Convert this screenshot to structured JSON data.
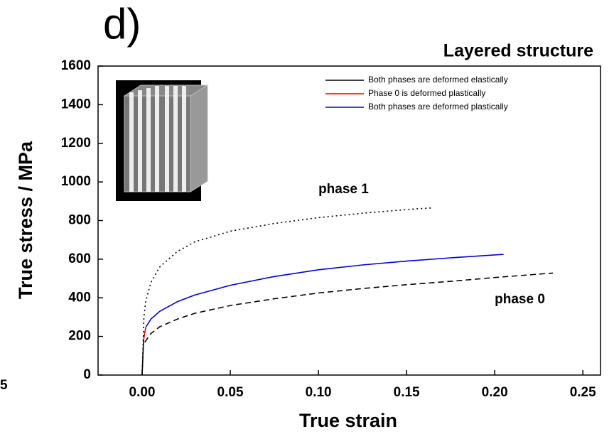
{
  "chart_data": {
    "type": "line",
    "panel_label": "d)",
    "title": "Layered structure",
    "x_label": "True strain",
    "y_label": "True stress / MPa",
    "left_fragment": "5",
    "xlim": [
      -0.025,
      0.26
    ],
    "ylim": [
      0,
      1600
    ],
    "xticks": [
      {
        "value": 0,
        "label": "0.00"
      },
      {
        "value": 0.05,
        "label": "0.05"
      },
      {
        "value": 0.1,
        "label": "0.10"
      },
      {
        "value": 0.15,
        "label": "0.15"
      },
      {
        "value": 0.2,
        "label": "0.20"
      },
      {
        "value": 0.25,
        "label": "0.25"
      }
    ],
    "yticks": [
      0,
      200,
      400,
      600,
      800,
      1000,
      1200,
      1400,
      1600
    ],
    "series": [
      {
        "name": "Both phases are deformed elastically",
        "color": "#000000",
        "dash": "solid",
        "x": [
          0,
          0.0008
        ],
        "values": [
          0,
          180
        ]
      },
      {
        "name": "Phase 0 is deformed plastically",
        "color": "#e00000",
        "dash": "solid",
        "x": [
          0.0008,
          0.0015,
          0.0022
        ],
        "values": [
          180,
          220,
          250
        ]
      },
      {
        "name": "Both phases are deformed  plastically",
        "color": "#0000dd",
        "dash": "solid",
        "x": [
          0.0022,
          0.005,
          0.01,
          0.02,
          0.03,
          0.05,
          0.075,
          0.1,
          0.125,
          0.15,
          0.175,
          0.205
        ],
        "values": [
          250,
          290,
          330,
          380,
          415,
          465,
          510,
          545,
          570,
          590,
          607,
          625
        ]
      },
      {
        "color": "#000000",
        "dash": "dotted",
        "x": [
          0,
          0.0005,
          0.001,
          0.002,
          0.005,
          0.01,
          0.02,
          0.03,
          0.05,
          0.075,
          0.1,
          0.125,
          0.15,
          0.165
        ],
        "values": [
          0,
          150,
          300,
          380,
          480,
          560,
          640,
          690,
          745,
          785,
          815,
          838,
          857,
          866
        ]
      },
      {
        "color": "#000000",
        "dash": "dashed",
        "x": [
          0.0015,
          0.005,
          0.01,
          0.02,
          0.03,
          0.05,
          0.075,
          0.1,
          0.125,
          0.15,
          0.175,
          0.2,
          0.233
        ],
        "values": [
          170,
          215,
          250,
          290,
          320,
          360,
          395,
          425,
          448,
          468,
          485,
          505,
          528
        ]
      }
    ],
    "annotations": [
      {
        "text": "phase 1",
        "x": 0.1,
        "y": 960
      },
      {
        "text": "phase 0",
        "x": 0.2,
        "y": 390
      }
    ]
  }
}
